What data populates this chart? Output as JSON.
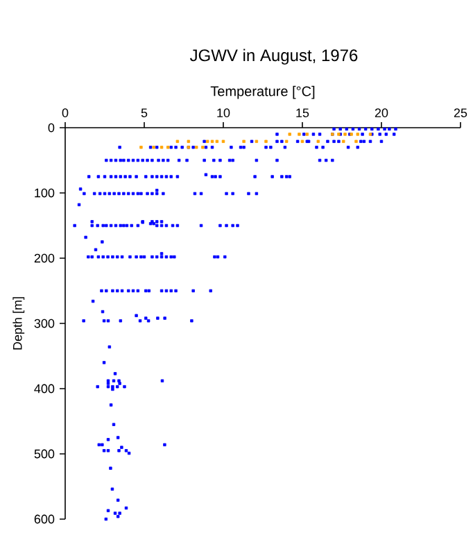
{
  "chart_data": {
    "type": "scatter",
    "title": "JGWV in August, 1976",
    "xlabel": "Temperature [°C]",
    "ylabel": "Depth [m]",
    "xlim": [
      0,
      25
    ],
    "xticks": [
      0,
      5,
      10,
      15,
      20,
      25
    ],
    "ylim": [
      600,
      0
    ],
    "yticks": [
      0,
      100,
      200,
      300,
      400,
      500,
      600
    ],
    "marker": "square",
    "grid": false,
    "series": [
      {
        "color": "#0000ff",
        "x": [
          17.0,
          17.4,
          17.8,
          18.2,
          18.6,
          19.0,
          19.4,
          19.8,
          20.2,
          20.5,
          20.9,
          13.4,
          15.1,
          15.7,
          16.1,
          16.9,
          17.4,
          18.0,
          18.8,
          19.4,
          19.9,
          20.3,
          20.8,
          8.8,
          11.8,
          13.4,
          13.7,
          14.7,
          15.3,
          15.4,
          16.6,
          17.0,
          17.3,
          18.7,
          18.9,
          19.3,
          20.0,
          3.45,
          5.4,
          5.8,
          6.7,
          7.0,
          7.4,
          7.8,
          8.1,
          8.9,
          9.3,
          10.5,
          11.1,
          11.3,
          12.7,
          13.0,
          13.9,
          15.9,
          16.3,
          17.9,
          18.5,
          2.6,
          2.9,
          3.2,
          3.5,
          3.7,
          4.0,
          4.3,
          4.6,
          4.9,
          5.2,
          5.5,
          5.9,
          6.2,
          6.5,
          7.2,
          7.7,
          8.8,
          9.4,
          9.8,
          10.4,
          10.6,
          12.1,
          13.4,
          16.1,
          16.5,
          16.9,
          1.5,
          2.1,
          2.5,
          2.9,
          3.2,
          3.5,
          3.8,
          4.1,
          4.5,
          5.1,
          5.5,
          5.8,
          6.1,
          6.4,
          6.7,
          7.1,
          9.3,
          9.5,
          9.8,
          12.0,
          13.1,
          13.7,
          14.0,
          14.2,
          8.9,
          0.97,
          1.2,
          1.85,
          2.2,
          2.5,
          2.8,
          3.1,
          3.4,
          3.7,
          4.0,
          4.3,
          4.6,
          4.8,
          5.2,
          5.5,
          5.8,
          6.2,
          8.2,
          8.6,
          10.2,
          10.6,
          11.6,
          12.1,
          5.8,
          0.88,
          1.7,
          4.9,
          5.5,
          5.8,
          6.1,
          0.6,
          1.7,
          2.05,
          2.4,
          2.6,
          2.9,
          3.2,
          3.5,
          3.7,
          3.9,
          4.2,
          4.6,
          5.8,
          6.1,
          6.4,
          6.8,
          7.1,
          8.6,
          9.8,
          10.2,
          10.6,
          10.9,
          4.9,
          5.4,
          5.6,
          1.3,
          2.34,
          1.93,
          1.46,
          1.7,
          2.1,
          2.4,
          2.7,
          3.0,
          3.3,
          3.6,
          4.1,
          4.5,
          4.8,
          5.0,
          5.5,
          5.8,
          6.1,
          6.4,
          6.7,
          6.9,
          9.45,
          9.65,
          10.1,
          6.1,
          2.3,
          2.6,
          3.0,
          3.3,
          3.6,
          4.0,
          4.3,
          4.6,
          5.1,
          5.3,
          6.1,
          6.4,
          6.7,
          7.0,
          8.1,
          9.2,
          1.76,
          2.37,
          4.5,
          5.1,
          5.85,
          6.3,
          1.17,
          2.46,
          2.72,
          3.5,
          4.74,
          5.27,
          8.0,
          2.8,
          2.46,
          3.16,
          2.72,
          3.07,
          3.4,
          6.14,
          2.72,
          3.45,
          2.05,
          2.72,
          3.0,
          3.3,
          3.75,
          3.0,
          2.9,
          3.07,
          3.34,
          2.72,
          2.14,
          2.34,
          6.29,
          3.57,
          2.46,
          2.72,
          3.4,
          3.86,
          4.04,
          2.87,
          2.98,
          3.34,
          3.86,
          2.72,
          3.16,
          3.45,
          3.34,
          2.58
        ],
        "values": [
          2,
          2,
          2,
          2,
          2,
          2,
          2,
          2,
          2,
          2,
          2,
          10,
          10,
          10,
          10,
          10,
          10,
          10,
          10,
          10,
          10,
          10,
          10,
          21,
          21,
          21,
          21,
          21,
          21,
          21,
          21,
          21,
          21,
          21,
          21,
          21,
          21,
          30,
          30,
          30,
          30,
          30,
          30,
          30,
          30,
          30,
          30,
          30,
          30,
          30,
          30,
          30,
          30,
          30,
          30,
          30,
          30,
          50,
          50,
          50,
          50,
          50,
          50,
          50,
          50,
          50,
          50,
          50,
          50,
          50,
          50,
          50,
          50,
          50,
          50,
          50,
          50,
          50,
          50,
          50,
          50,
          50,
          50,
          75,
          75,
          75,
          75,
          75,
          75,
          75,
          75,
          75,
          75,
          75,
          75,
          75,
          75,
          75,
          75,
          75,
          75,
          75,
          75,
          75,
          75,
          75,
          75,
          72,
          94,
          101,
          101,
          101,
          101,
          101,
          101,
          101,
          101,
          101,
          101,
          101,
          101,
          101,
          101,
          101,
          101,
          101,
          101,
          101,
          101,
          101,
          101,
          96,
          118,
          144,
          144,
          144,
          144,
          144,
          150,
          150,
          150,
          150,
          150,
          150,
          150,
          150,
          150,
          150,
          150,
          150,
          150,
          150,
          150,
          150,
          150,
          150,
          150,
          150,
          150,
          150,
          145,
          147,
          147,
          168,
          175,
          187,
          198,
          198,
          198,
          198,
          198,
          198,
          198,
          198,
          198,
          198,
          198,
          198,
          198,
          198,
          198,
          198,
          198,
          198,
          198,
          198,
          198,
          193,
          250,
          250,
          250,
          250,
          250,
          250,
          250,
          250,
          250,
          250,
          250,
          250,
          250,
          250,
          250,
          250,
          266,
          282,
          288,
          292,
          292,
          292,
          296,
          296,
          296,
          296,
          296,
          296,
          296,
          336,
          360,
          377,
          388,
          388,
          388,
          388,
          392,
          392,
          397,
          397,
          397,
          397,
          397,
          401,
          425,
          455,
          475,
          478,
          486,
          486,
          486,
          490,
          495,
          495,
          495,
          495,
          499,
          522,
          554,
          571,
          583,
          587,
          591,
          591,
          596,
          600
        ]
      },
      {
        "color": "#ffa500",
        "x": [
          14.2,
          14.8,
          15.3,
          16.9,
          17.3,
          17.7,
          18.1,
          18.5,
          19.3,
          7.1,
          7.8,
          9.0,
          9.3,
          9.6,
          10.0,
          11.3,
          12.1,
          12.7,
          14.0,
          15.0,
          16.0,
          17.6,
          18.4,
          4.8,
          5.6,
          6.1,
          6.5,
          7.8,
          8.3,
          8.7
        ],
        "values": [
          10,
          10,
          10,
          10,
          10,
          10,
          10,
          10,
          10,
          21,
          21,
          21,
          21,
          21,
          21,
          21,
          21,
          21,
          21,
          21,
          21,
          21,
          21,
          30,
          30,
          30,
          30,
          30,
          30,
          30
        ]
      }
    ]
  }
}
